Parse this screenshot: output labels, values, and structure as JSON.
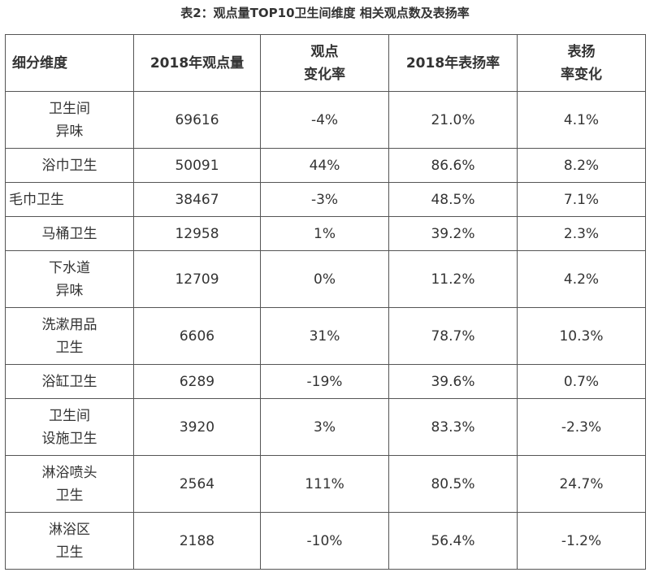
{
  "title": "表2：观点量TOP10卫生间维度 相关观点数及表扬率",
  "table": {
    "headers": [
      "细分维度",
      "2018年观点量",
      "观点\n变化率",
      "2018年表扬率",
      "表扬\n率变化"
    ],
    "rows": [
      {
        "dim": "卫生间\n异味",
        "volume": "69616",
        "volume_change": "-4%",
        "praise_rate": "21.0%",
        "praise_change": "4.1%"
      },
      {
        "dim": "浴巾卫生",
        "volume": "50091",
        "volume_change": "44%",
        "praise_rate": "86.6%",
        "praise_change": "8.2%"
      },
      {
        "dim": "毛巾卫生",
        "volume": "38467",
        "volume_change": "-3%",
        "praise_rate": "48.5%",
        "praise_change": "7.1%"
      },
      {
        "dim": "马桶卫生",
        "volume": "12958",
        "volume_change": "1%",
        "praise_rate": "39.2%",
        "praise_change": "2.3%"
      },
      {
        "dim": "下水道\n异味",
        "volume": "12709",
        "volume_change": "0%",
        "praise_rate": "11.2%",
        "praise_change": "4.2%"
      },
      {
        "dim": "洗漱用品\n卫生",
        "volume": "6606",
        "volume_change": "31%",
        "praise_rate": "78.7%",
        "praise_change": "10.3%"
      },
      {
        "dim": "浴缸卫生",
        "volume": "6289",
        "volume_change": "-19%",
        "praise_rate": "39.6%",
        "praise_change": "0.7%"
      },
      {
        "dim": "卫生间\n设施卫生",
        "volume": "3920",
        "volume_change": "3%",
        "praise_rate": "83.3%",
        "praise_change": "-2.3%"
      },
      {
        "dim": "淋浴喷头\n卫生",
        "volume": "2564",
        "volume_change": "111%",
        "praise_rate": "80.5%",
        "praise_change": "24.7%"
      },
      {
        "dim": "淋浴区\n卫生",
        "volume": "2188",
        "volume_change": "-10%",
        "praise_rate": "56.4%",
        "praise_change": "-1.2%"
      }
    ]
  }
}
